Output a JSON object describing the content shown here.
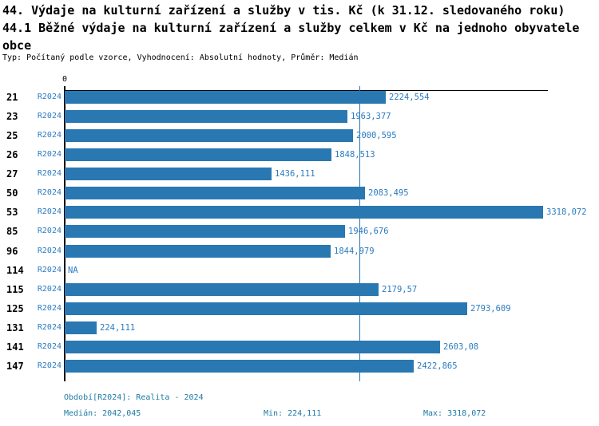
{
  "header": {
    "title_line1": "44. Výdaje na kulturní zařízení a služby v tis. Kč (k 31.12. sledovaného roku)",
    "title_line2": "44.1 Běžné výdaje na kulturní zařízení a služby celkem v Kč na jednoho obyvatele obce",
    "meta": "Typ: Počítaný podle vzorce, Vyhodnocení: Absolutní hodnoty, Průměr: Medián"
  },
  "chart_data": {
    "type": "bar",
    "orientation": "horizontal",
    "series_label": "R2024",
    "categories": [
      "21",
      "23",
      "25",
      "26",
      "27",
      "50",
      "53",
      "85",
      "96",
      "114",
      "115",
      "125",
      "131",
      "141",
      "147"
    ],
    "values": [
      2224.554,
      1963.377,
      2000.595,
      1848.513,
      1436.111,
      2083.495,
      3318.072,
      1946.676,
      1844.979,
      null,
      2179.57,
      2793.609,
      224.111,
      2603.08,
      2422.865
    ],
    "value_labels": [
      "2224,554",
      "1963,377",
      "2000,595",
      "1848,513",
      "1436,111",
      "2083,495",
      "3318,072",
      "1946,676",
      "1844,979",
      "NA",
      "2179,57",
      "2793,609",
      "224,111",
      "2603,08",
      "2422,865"
    ],
    "na_label": "NA",
    "axis": {
      "zero_label": "0",
      "x_min": 0,
      "median_value": 2042.045,
      "min_value": 224.111,
      "max_value": 3318.072,
      "grid": false,
      "median_line": true
    },
    "colors": {
      "bar": "#2978b2",
      "median_line": "#2978b2",
      "blue_text": "#2b7bc0",
      "footer_text": "#1f7aa6",
      "axis": "#000000"
    }
  },
  "footer": {
    "period": "Období[R2024]: Realita - 2024",
    "median": "Medián: 2042,045",
    "min": "Min: 224,111",
    "max": "Max: 3318,072"
  }
}
